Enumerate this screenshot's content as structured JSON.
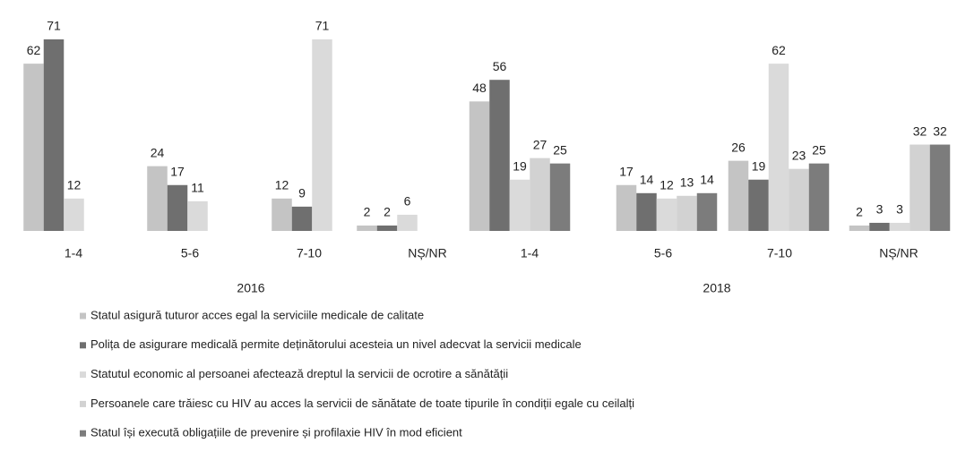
{
  "chart_data": {
    "type": "bar",
    "categories": [
      "1-4",
      "5-6",
      "7-10",
      "NȘ/NR",
      "1-4",
      "5-6",
      "7-10",
      "NȘ/NR"
    ],
    "category_groups": [
      {
        "label": "2016",
        "count": 4
      },
      {
        "label": "2018",
        "count": 4
      }
    ],
    "series": [
      {
        "name": "Statul asigură tuturor acces egal la serviciile medicale de calitate",
        "color": "#c4c4c4",
        "values": [
          62,
          24,
          12,
          2,
          48,
          17,
          26,
          2
        ]
      },
      {
        "name": "Polița de asigurare medicală permite deținătorului  acesteia un nivel adecvat la servicii medicale",
        "color": "#6f6f6f",
        "values": [
          71,
          17,
          9,
          2,
          56,
          14,
          19,
          3
        ]
      },
      {
        "name": "Statutul  economic al persoanei afectează dreptul la servicii de ocrotire a sănătății",
        "color": "#dadada",
        "values": [
          12,
          11,
          71,
          6,
          19,
          12,
          62,
          3
        ]
      },
      {
        "name": "Persoanele care trăiesc cu HIV au acces la servicii de sănătate  de toate tipurile în condiții egale cu ceilalți",
        "color": "#d2d2d2",
        "values": [
          null,
          null,
          null,
          null,
          27,
          13,
          23,
          32
        ]
      },
      {
        "name": "Statul își execută obligațiile de prevenire și profilaxie HIV în mod eficient",
        "color": "#7c7c7c",
        "values": [
          null,
          null,
          null,
          null,
          25,
          14,
          25,
          32
        ]
      }
    ],
    "legend": "bottom"
  }
}
